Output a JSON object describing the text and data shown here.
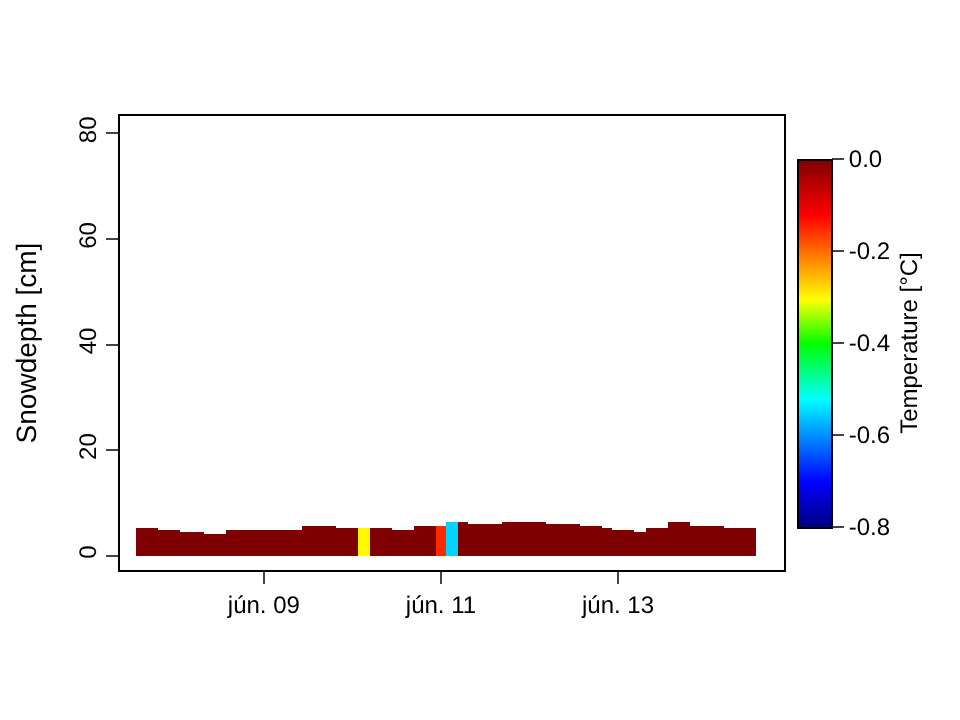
{
  "chart_data": {
    "type": "bar",
    "xlabel": null,
    "ylabel": "Snowdepth [cm]",
    "clabel": "Temperature [°C]",
    "x": [
      "--06-07T15:00",
      "--06-07T18:00",
      "--06-07T21:00",
      "--06-08T00:00",
      "--06-08T03:00",
      "--06-08T06:00",
      "--06-08T09:00",
      "--06-08T12:00",
      "--06-08T15:00",
      "--06-08T18:00",
      "--06-08T21:00",
      "--06-09T00:00",
      "--06-09T03:00",
      "--06-09T06:00",
      "--06-09T09:00",
      "--06-09T12:00",
      "--06-09T15:00",
      "--06-09T18:00",
      "--06-09T21:00",
      "--06-10T00:00",
      "--06-10T03:00",
      "--06-10T06:00",
      "--06-10T09:00",
      "--06-10T12:00",
      "--06-10T15:00",
      "--06-10T18:00",
      "--06-10T21:00",
      "--06-11T00:00",
      "--06-11T03:00",
      "--06-11T06:00",
      "--06-11T09:00",
      "--06-11T12:00",
      "--06-11T15:00",
      "--06-11T18:00",
      "--06-11T21:00",
      "--06-12T00:00",
      "--06-12T03:00",
      "--06-12T06:00",
      "--06-12T09:00",
      "--06-12T12:00",
      "--06-12T15:00",
      "--06-12T18:00",
      "--06-12T21:00",
      "--06-13T00:00",
      "--06-13T03:00",
      "--06-13T06:00",
      "--06-13T09:00",
      "--06-13T12:00",
      "--06-13T15:00",
      "--06-13T18:00",
      "--06-13T21:00",
      "--06-14T00:00",
      "--06-14T03:00",
      "--06-14T06:00",
      "--06-14T09:00",
      "--06-14T12:00"
    ],
    "values": [
      5.3,
      5.3,
      5.0,
      5.0,
      4.6,
      4.6,
      4.3,
      4.3,
      4.8,
      4.8,
      5.0,
      5.0,
      5.0,
      5.0,
      5.0,
      5.5,
      5.5,
      5.5,
      5.1,
      5.1,
      5.1,
      5.3,
      5.3,
      4.8,
      4.8,
      5.8,
      5.8,
      5.5,
      6.5,
      6.5,
      6.0,
      6.0,
      6.0,
      6.4,
      6.4,
      6.4,
      6.4,
      5.9,
      5.9,
      5.9,
      5.7,
      5.7,
      5.3,
      4.8,
      4.8,
      4.4,
      5.3,
      5.3,
      6.3,
      6.3,
      5.8,
      5.8,
      5.8,
      5.3,
      5.3,
      5.3
    ],
    "cvalues": [
      0,
      0,
      0,
      0,
      0,
      0,
      0,
      0,
      0,
      0,
      0,
      0,
      0,
      0,
      0,
      0,
      0,
      0,
      0,
      0,
      -0.3,
      0,
      0,
      0,
      0,
      0,
      0,
      -0.15,
      -0.55,
      0,
      0,
      0,
      0,
      0,
      0,
      0,
      0,
      0,
      0,
      0,
      0,
      0,
      0,
      0,
      0,
      0,
      0,
      0,
      0,
      0,
      0,
      0,
      0,
      0,
      0,
      0
    ],
    "xlim": [
      "--06-07T09:00",
      "--06-14T21:00"
    ],
    "xticks": [
      {
        "value": "--06-09",
        "label": "jún. 09"
      },
      {
        "value": "--06-11",
        "label": "jún. 11"
      },
      {
        "value": "--06-13",
        "label": "jún. 13"
      }
    ],
    "ylim": [
      -2.7,
      83.3
    ],
    "yticks": [
      0,
      20,
      40,
      60,
      80
    ],
    "clim": [
      -0.8,
      0
    ],
    "cticks": [
      {
        "value": 0,
        "label": "0.0"
      },
      -0.2,
      -0.4,
      -0.6,
      -0.8
    ],
    "grid": false,
    "legend": false
  }
}
